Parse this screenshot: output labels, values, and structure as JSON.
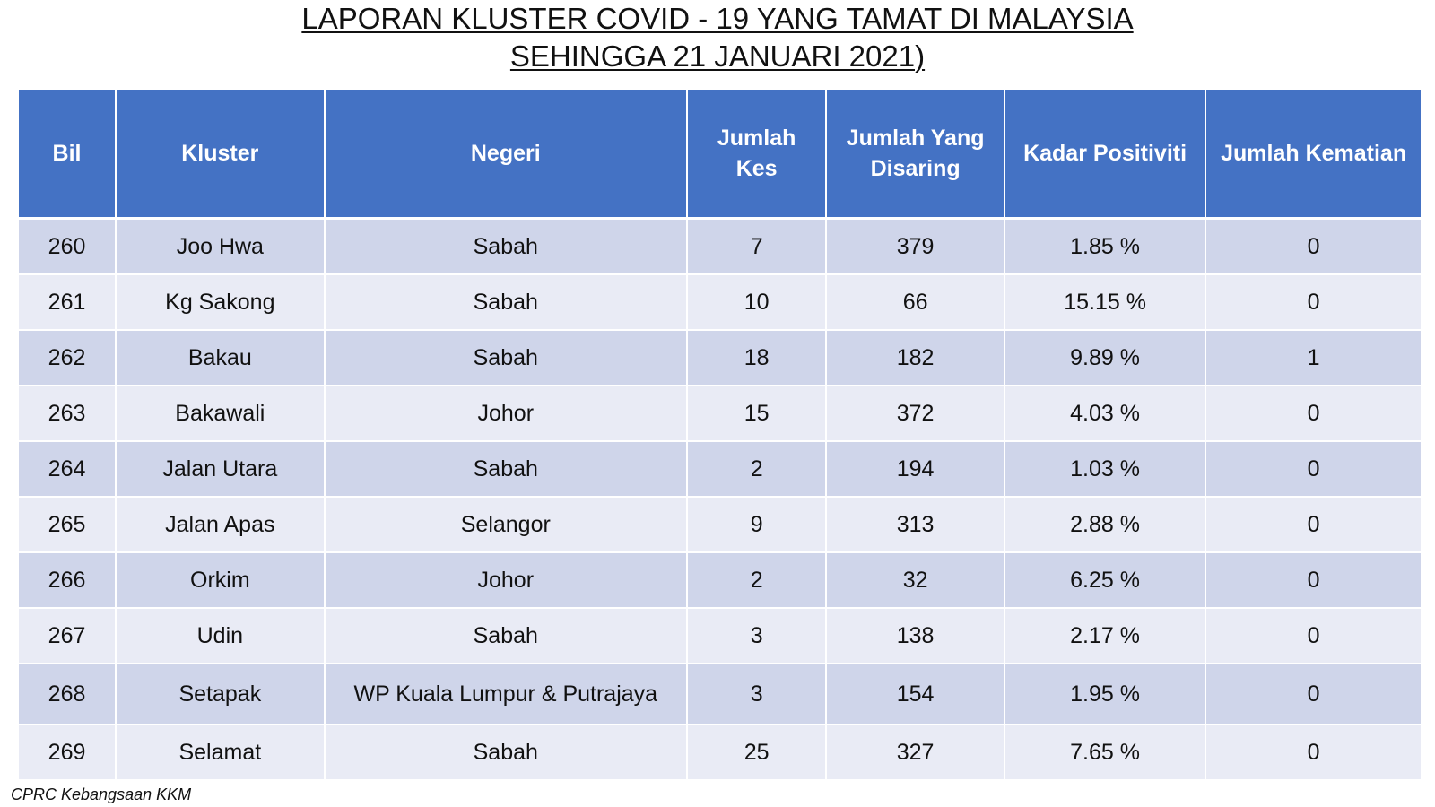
{
  "title": {
    "line1": "LAPORAN KLUSTER COVID - 19 YANG TAMAT DI MALAYSIA",
    "line2": "SEHINGGA 21 JANUARI 2021)"
  },
  "table": {
    "headers": [
      "Bil",
      "Kluster",
      "Negeri",
      "Jumlah Kes",
      "Jumlah Yang Disaring",
      "Kadar Positiviti",
      "Jumlah Kematian"
    ],
    "rows": [
      [
        "260",
        "Joo Hwa",
        "Sabah",
        "7",
        "379",
        "1.85 %",
        "0"
      ],
      [
        "261",
        "Kg Sakong",
        "Sabah",
        "10",
        "66",
        "15.15 %",
        "0"
      ],
      [
        "262",
        "Bakau",
        "Sabah",
        "18",
        "182",
        "9.89 %",
        "1"
      ],
      [
        "263",
        "Bakawali",
        "Johor",
        "15",
        "372",
        "4.03 %",
        "0"
      ],
      [
        "264",
        "Jalan Utara",
        "Sabah",
        "2",
        "194",
        "1.03 %",
        "0"
      ],
      [
        "265",
        "Jalan Apas",
        "Selangor",
        "9",
        "313",
        "2.88 %",
        "0"
      ],
      [
        "266",
        "Orkim",
        "Johor",
        "2",
        "32",
        "6.25 %",
        "0"
      ],
      [
        "267",
        "Udin",
        "Sabah",
        "3",
        "138",
        "2.17 %",
        "0"
      ],
      [
        "268",
        "Setapak",
        "WP Kuala Lumpur & Putrajaya",
        "3",
        "154",
        "1.95 %",
        "0"
      ],
      [
        "269",
        "Selamat",
        "Sabah",
        "25",
        "327",
        "7.65 %",
        "0"
      ]
    ]
  },
  "footer": {
    "source": "CPRC Kebangsaan KKM"
  },
  "colors": {
    "header_bg": "#4472c4",
    "row_odd_bg": "#cfd5ea",
    "row_even_bg": "#e9ebf5"
  }
}
